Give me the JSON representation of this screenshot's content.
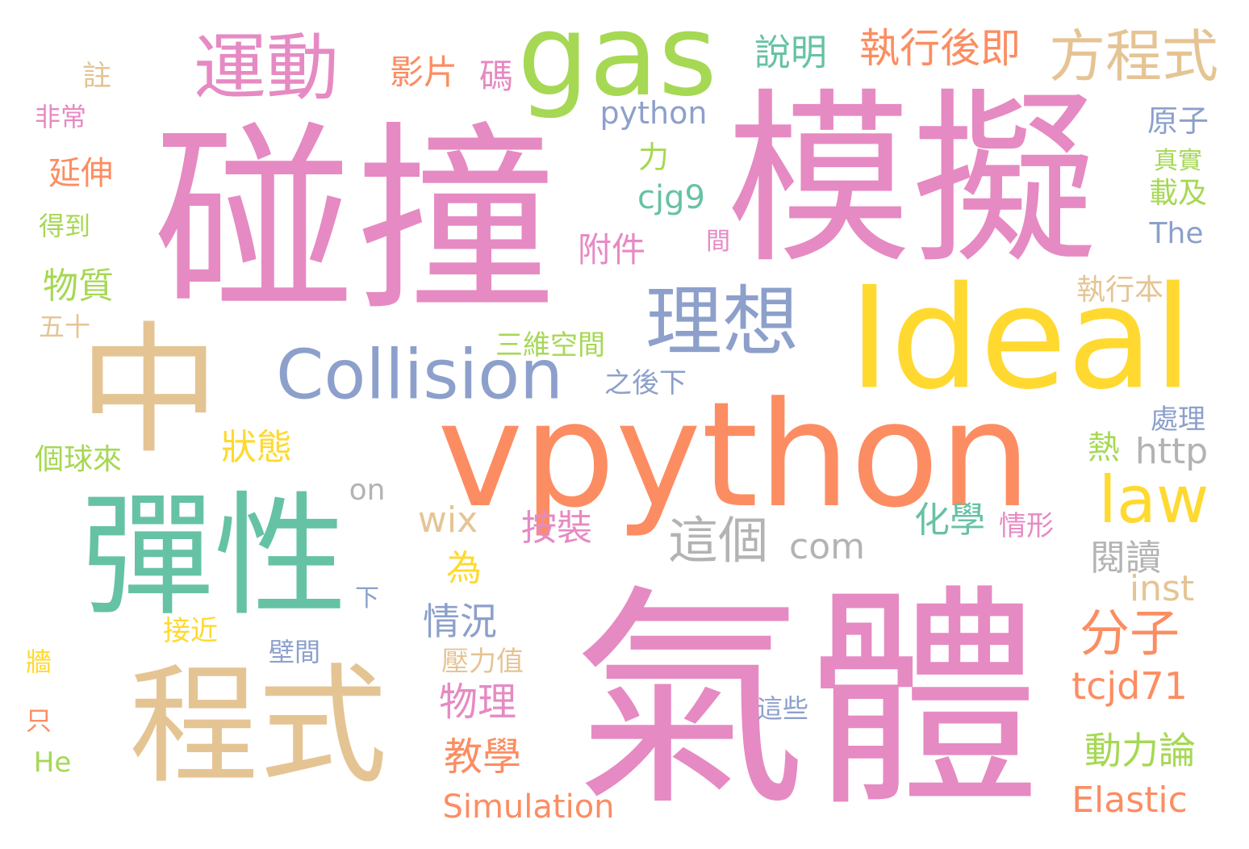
{
  "background_color": "#ffffff",
  "palette": {
    "pink": "#e68ac3",
    "orange": "#fc8d62",
    "green": "#66c2a5",
    "tan": "#e5c494",
    "blue": "#8da0cb",
    "yellow": "#ffd92f",
    "lime": "#a6d854",
    "gray": "#b3b3b3"
  },
  "words": [
    {
      "text": "氣體",
      "color": "pink"
    },
    {
      "text": "碰撞",
      "color": "pink"
    },
    {
      "text": "模擬",
      "color": "pink"
    },
    {
      "text": "vpython",
      "color": "orange"
    },
    {
      "text": "Ideal",
      "color": "yellow"
    },
    {
      "text": "彈性",
      "color": "green"
    },
    {
      "text": "程式",
      "color": "tan"
    },
    {
      "text": "中",
      "color": "tan"
    },
    {
      "text": "gas",
      "color": "lime"
    },
    {
      "text": "理想",
      "color": "blue"
    },
    {
      "text": "Collision",
      "color": "blue"
    },
    {
      "text": "運動",
      "color": "pink"
    },
    {
      "text": "方程式",
      "color": "tan"
    },
    {
      "text": "law",
      "color": "yellow"
    },
    {
      "text": "這個",
      "color": "gray"
    },
    {
      "text": "分子",
      "color": "orange"
    },
    {
      "text": "執行後即",
      "color": "orange"
    },
    {
      "text": "說明",
      "color": "green"
    },
    {
      "text": "影片",
      "color": "orange"
    },
    {
      "text": "碼",
      "color": "pink"
    },
    {
      "text": "python",
      "color": "blue"
    },
    {
      "text": "註",
      "color": "tan"
    },
    {
      "text": "非常",
      "color": "pink"
    },
    {
      "text": "延伸",
      "color": "orange"
    },
    {
      "text": "力",
      "color": "lime"
    },
    {
      "text": "原子",
      "color": "blue"
    },
    {
      "text": "真實",
      "color": "lime"
    },
    {
      "text": "載及",
      "color": "lime"
    },
    {
      "text": "cjg9",
      "color": "green"
    },
    {
      "text": "得到",
      "color": "lime"
    },
    {
      "text": "附件",
      "color": "pink"
    },
    {
      "text": "間",
      "color": "pink"
    },
    {
      "text": "The",
      "color": "blue"
    },
    {
      "text": "物質",
      "color": "lime"
    },
    {
      "text": "執行本",
      "color": "tan"
    },
    {
      "text": "五十",
      "color": "tan"
    },
    {
      "text": "三維空間",
      "color": "lime"
    },
    {
      "text": "之後下",
      "color": "blue"
    },
    {
      "text": "處理",
      "color": "blue"
    },
    {
      "text": "熱",
      "color": "lime"
    },
    {
      "text": "http",
      "color": "gray"
    },
    {
      "text": "狀態",
      "color": "yellow"
    },
    {
      "text": "個球來",
      "color": "lime"
    },
    {
      "text": "on",
      "color": "gray"
    },
    {
      "text": "wix",
      "color": "tan"
    },
    {
      "text": "按裝",
      "color": "pink"
    },
    {
      "text": "化學",
      "color": "green"
    },
    {
      "text": "情形",
      "color": "pink"
    },
    {
      "text": "com",
      "color": "gray"
    },
    {
      "text": "閱讀",
      "color": "gray"
    },
    {
      "text": "為",
      "color": "yellow"
    },
    {
      "text": "inst",
      "color": "tan"
    },
    {
      "text": "下",
      "color": "blue"
    },
    {
      "text": "情況",
      "color": "blue"
    },
    {
      "text": "接近",
      "color": "yellow"
    },
    {
      "text": "牆",
      "color": "yellow"
    },
    {
      "text": "壁間",
      "color": "blue"
    },
    {
      "text": "壓力值",
      "color": "tan"
    },
    {
      "text": "物理",
      "color": "pink"
    },
    {
      "text": "tcjd71",
      "color": "orange"
    },
    {
      "text": "這些",
      "color": "blue"
    },
    {
      "text": "只",
      "color": "orange"
    },
    {
      "text": "教學",
      "color": "orange"
    },
    {
      "text": "動力論",
      "color": "lime"
    },
    {
      "text": "He",
      "color": "lime"
    },
    {
      "text": "Elastic",
      "color": "orange"
    },
    {
      "text": "Simulation",
      "color": "orange"
    }
  ]
}
